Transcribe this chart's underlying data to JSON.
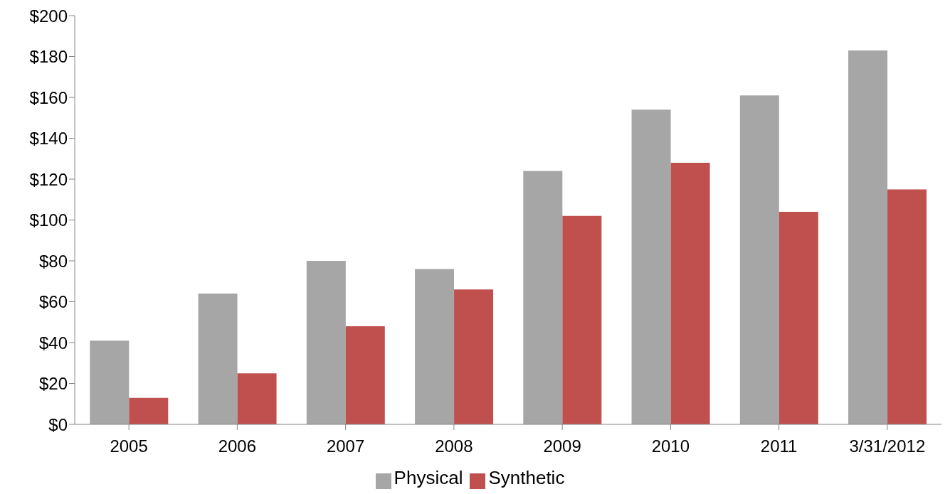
{
  "chart_data": {
    "type": "bar",
    "categories": [
      "2005",
      "2006",
      "2007",
      "2008",
      "2009",
      "2010",
      "2011",
      "3/31/2012"
    ],
    "series": [
      {
        "name": "Physical",
        "color": "#a6a6a6",
        "values": [
          41,
          64,
          80,
          76,
          124,
          154,
          161,
          183
        ]
      },
      {
        "name": "Synthetic",
        "color": "#c0504d",
        "values": [
          13,
          25,
          48,
          66,
          102,
          128,
          104,
          115
        ]
      }
    ],
    "ylim": [
      0,
      200
    ],
    "yticks": [
      {
        "value": 0,
        "label": "$0"
      },
      {
        "value": 20,
        "label": "$20"
      },
      {
        "value": 40,
        "label": "$40"
      },
      {
        "value": 60,
        "label": "$60"
      },
      {
        "value": 80,
        "label": "$80"
      },
      {
        "value": 100,
        "label": "$100"
      },
      {
        "value": 120,
        "label": "$120"
      },
      {
        "value": 140,
        "label": "$140"
      },
      {
        "value": 160,
        "label": "$160"
      },
      {
        "value": 180,
        "label": "$180"
      },
      {
        "value": 200,
        "label": "$200"
      }
    ],
    "grid": false,
    "legend": "bottom"
  }
}
